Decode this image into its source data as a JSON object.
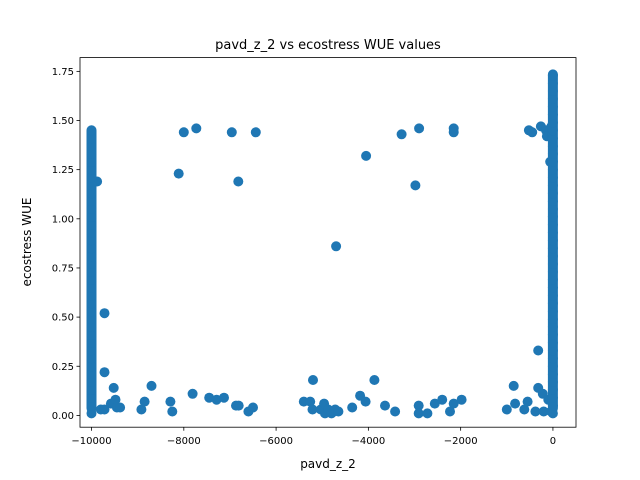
{
  "chart_data": {
    "type": "scatter",
    "title": "pavd_z_2 vs ecostress WUE values",
    "xlabel": "pavd_z_2",
    "ylabel": "ecostress WUE",
    "xlim": [
      -10250,
      500
    ],
    "ylim": [
      -0.06,
      1.82
    ],
    "xticks": [
      -10000,
      -8000,
      -6000,
      -4000,
      -2000,
      0
    ],
    "xtick_labels": [
      "−10000",
      "−8000",
      "−6000",
      "−4000",
      "−2000",
      "0"
    ],
    "yticks": [
      0.0,
      0.25,
      0.5,
      0.75,
      1.0,
      1.25,
      1.5,
      1.75
    ],
    "ytick_labels": [
      "0.00",
      "0.25",
      "0.50",
      "0.75",
      "1.00",
      "1.25",
      "1.50",
      "1.75"
    ],
    "grid": false,
    "marker_color": "#1f77b4",
    "points": [
      [
        -9720,
        0.52
      ],
      [
        -9720,
        0.22
      ],
      [
        -9880,
        1.19
      ],
      [
        -9520,
        0.14
      ],
      [
        -9580,
        0.06
      ],
      [
        -9480,
        0.08
      ],
      [
        -9450,
        0.04
      ],
      [
        -9380,
        0.04
      ],
      [
        -9800,
        0.03
      ],
      [
        -9720,
        0.03
      ],
      [
        -8700,
        0.15
      ],
      [
        -8920,
        0.03
      ],
      [
        -8850,
        0.07
      ],
      [
        -8290,
        0.07
      ],
      [
        -8250,
        0.02
      ],
      [
        -8110,
        1.23
      ],
      [
        -8000,
        1.44
      ],
      [
        -7730,
        1.46
      ],
      [
        -7810,
        0.11
      ],
      [
        -7450,
        0.09
      ],
      [
        -7290,
        0.08
      ],
      [
        -7130,
        0.09
      ],
      [
        -6960,
        1.44
      ],
      [
        -6870,
        0.05
      ],
      [
        -6810,
        0.05
      ],
      [
        -6820,
        1.19
      ],
      [
        -6440,
        1.44
      ],
      [
        -6600,
        0.02
      ],
      [
        -6500,
        0.04
      ],
      [
        -5400,
        0.07
      ],
      [
        -5260,
        0.07
      ],
      [
        -5210,
        0.03
      ],
      [
        -5200,
        0.18
      ],
      [
        -5030,
        0.03
      ],
      [
        -4960,
        0.06
      ],
      [
        -4940,
        0.01
      ],
      [
        -4870,
        0.03
      ],
      [
        -4800,
        0.01
      ],
      [
        -4750,
        0.02
      ],
      [
        -4720,
        0.03
      ],
      [
        -4700,
        0.86
      ],
      [
        -4650,
        0.02
      ],
      [
        -4350,
        0.04
      ],
      [
        -4180,
        0.1
      ],
      [
        -4050,
        1.32
      ],
      [
        -4060,
        0.07
      ],
      [
        -3870,
        0.18
      ],
      [
        -3640,
        0.05
      ],
      [
        -3420,
        0.02
      ],
      [
        -3280,
        1.43
      ],
      [
        -2980,
        1.17
      ],
      [
        -2900,
        1.46
      ],
      [
        -2910,
        0.05
      ],
      [
        -2910,
        0.01
      ],
      [
        -2720,
        0.01
      ],
      [
        -2560,
        0.06
      ],
      [
        -2400,
        0.08
      ],
      [
        -2230,
        0.02
      ],
      [
        -2150,
        1.46
      ],
      [
        -2150,
        1.44
      ],
      [
        -2150,
        0.06
      ],
      [
        -1980,
        0.08
      ],
      [
        -1000,
        0.03
      ],
      [
        -850,
        0.15
      ],
      [
        -820,
        0.06
      ],
      [
        -620,
        0.03
      ],
      [
        -550,
        0.07
      ],
      [
        -520,
        1.45
      ],
      [
        -450,
        1.44
      ],
      [
        -380,
        0.02
      ],
      [
        -320,
        0.33
      ],
      [
        -320,
        0.14
      ],
      [
        -260,
        1.47
      ],
      [
        -220,
        0.11
      ],
      [
        -200,
        0.02
      ],
      [
        -150,
        1.45
      ],
      [
        -130,
        1.42
      ],
      [
        -100,
        0.08
      ],
      [
        -60,
        1.29
      ],
      [
        -40,
        0.02
      ],
      [
        -30,
        1.47
      ]
    ],
    "columns": [
      {
        "x": -10000,
        "y_min": 0.01,
        "y_max": 1.47
      },
      {
        "x": 0,
        "y_min": 0.01,
        "y_max": 1.76
      }
    ]
  }
}
